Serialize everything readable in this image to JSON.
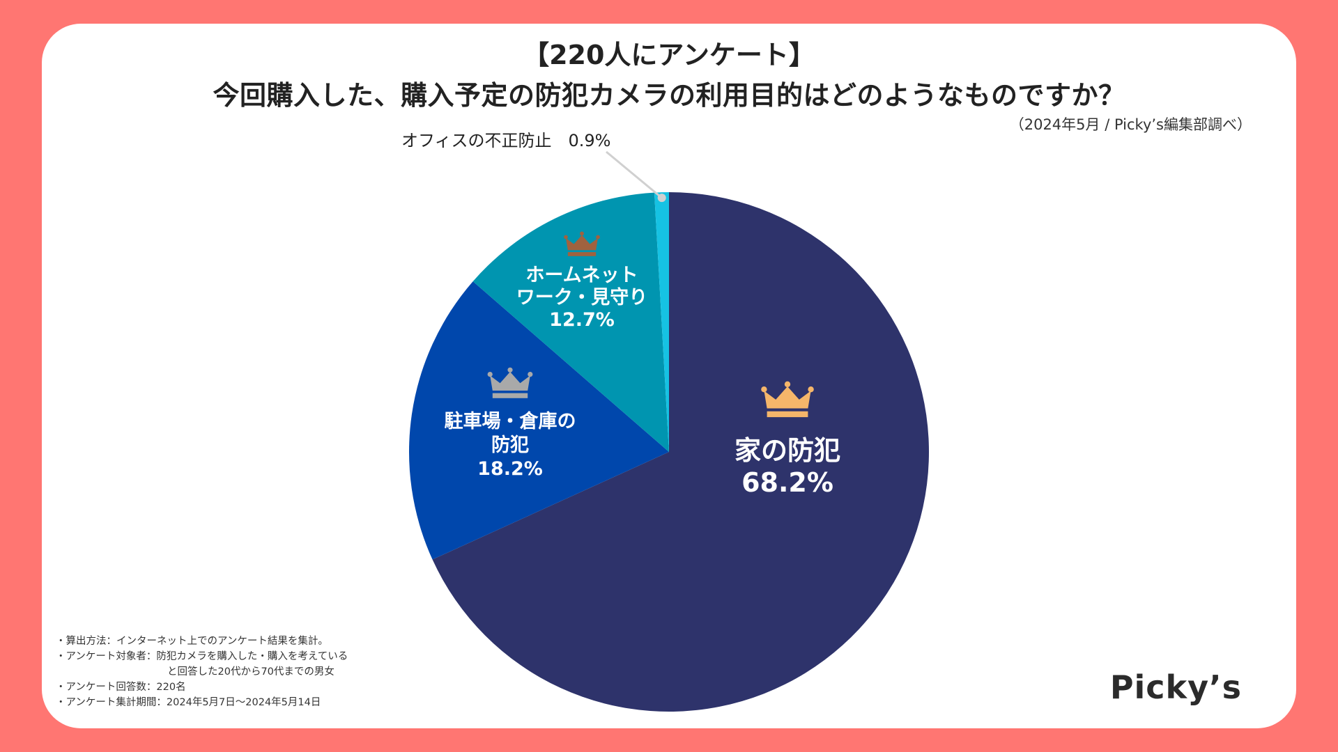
{
  "header": {
    "survey_label": "【220人にアンケート】",
    "question": "今回購入した、購入予定の防犯カメラの利用目的はどのようなものですか？",
    "source": "（2024年5月 / Picky’s編集部調べ）"
  },
  "chart_data": {
    "type": "pie",
    "title": "今回購入した、購入予定の防犯カメラの利用目的はどのようなものですか？",
    "unit": "%",
    "slices": [
      {
        "label_lines": [
          "家の防犯"
        ],
        "value": 68.2,
        "value_label": "68.2%",
        "color": "#2E336B",
        "rank": 1,
        "crown_color": "#F5B66A"
      },
      {
        "label_lines": [
          "駐車場・倉庫の",
          "防犯"
        ],
        "value": 18.2,
        "value_label": "18.2%",
        "color": "#0047AC",
        "rank": 2,
        "crown_color": "#A9A9A9"
      },
      {
        "label_lines": [
          "ホームネット",
          "ワーク・見守り"
        ],
        "value": 12.7,
        "value_label": "12.7%",
        "color": "#0095B0",
        "rank": 3,
        "crown_color": "#A0623F"
      },
      {
        "label_lines": [
          "オフィスの不正防止"
        ],
        "value": 0.9,
        "value_label": "0.9%",
        "color": "#16C2E3",
        "rank": 4
      }
    ],
    "callout_label": "オフィスの不正防止　0.9%",
    "callout_line_color": "#D0D0D0"
  },
  "notes": [
    "・算出方法：インターネット上でのアンケート結果を集計。",
    "・アンケート対象者：防犯カメラを購入した・購入を考えている",
    "と回答した20代から70代までの男女",
    "・アンケート回答数：220名",
    "・アンケート集計期間：2024年5月7日〜2024年5月14日"
  ],
  "brand": {
    "logo_text": "Picky’s"
  },
  "colors": {
    "background": "#FF7672",
    "card": "#FFFFFF"
  }
}
